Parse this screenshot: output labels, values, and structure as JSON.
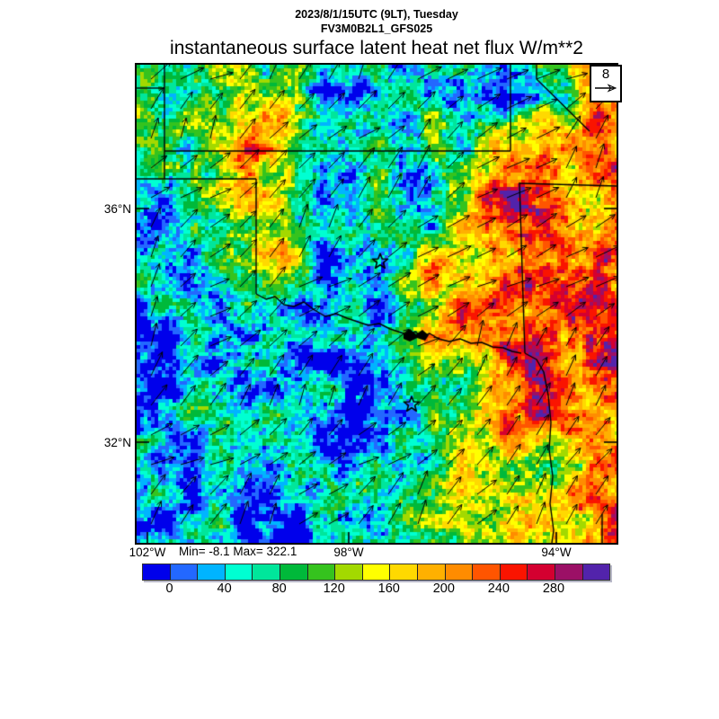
{
  "header": {
    "line1": "2023/8/1/15UTC (9LT), Tuesday",
    "line2": "FV3M0B2L1_GFS025",
    "title": "instantaneous surface latent heat net flux W/m**2"
  },
  "map": {
    "minmax_label": "Min= -8.1 Max= 322.1",
    "wind_ref_label": "8",
    "borders": [
      [
        [
          152,
          98
        ],
        [
          183,
          98
        ]
      ],
      [
        [
          183,
          72
        ],
        [
          183,
          199
        ]
      ],
      [
        [
          183,
          168
        ],
        [
          568,
          168
        ]
      ],
      [
        [
          568,
          72
        ],
        [
          568,
          168
        ]
      ],
      [
        [
          597,
          72
        ],
        [
          597,
          88
        ],
        [
          656,
          146
        ]
      ],
      [
        [
          152,
          199
        ],
        [
          285,
          199
        ]
      ],
      [
        [
          285,
          199
        ],
        [
          285,
          327
        ]
      ],
      [
        [
          285,
          327
        ],
        [
          296,
          333
        ],
        [
          306,
          330
        ],
        [
          316,
          339
        ],
        [
          327,
          341
        ],
        [
          338,
          336
        ],
        [
          350,
          345
        ],
        [
          362,
          352
        ],
        [
          374,
          349
        ],
        [
          386,
          354
        ],
        [
          398,
          358
        ],
        [
          410,
          362
        ],
        [
          422,
          360
        ],
        [
          434,
          366
        ],
        [
          446,
          370
        ],
        [
          455,
          373
        ],
        [
          462,
          369
        ],
        [
          470,
          375
        ],
        [
          478,
          371
        ],
        [
          488,
          377
        ],
        [
          500,
          380
        ],
        [
          512,
          377
        ],
        [
          524,
          382
        ],
        [
          536,
          381
        ],
        [
          548,
          386
        ],
        [
          560,
          387
        ],
        [
          570,
          391
        ],
        [
          580,
          393
        ]
      ],
      [
        [
          578,
          203
        ],
        [
          581,
          300
        ],
        [
          584,
          393
        ]
      ],
      [
        [
          578,
          204
        ],
        [
          686,
          207
        ]
      ],
      [
        [
          584,
          393
        ],
        [
          597,
          400
        ],
        [
          605,
          414
        ],
        [
          610,
          440
        ],
        [
          613,
          470
        ],
        [
          611,
          500
        ],
        [
          615,
          530
        ],
        [
          612,
          560
        ],
        [
          616,
          590
        ],
        [
          614,
          604
        ]
      ],
      [
        [
          670,
          572
        ],
        [
          670,
          604
        ]
      ]
    ],
    "lake_polygon": [
      [
        449,
        372
      ],
      [
        456,
        366
      ],
      [
        463,
        372
      ],
      [
        470,
        367
      ],
      [
        477,
        373
      ],
      [
        473,
        379
      ],
      [
        464,
        376
      ],
      [
        456,
        380
      ],
      [
        449,
        377
      ]
    ],
    "stars": [
      [
        423,
        291
      ],
      [
        458,
        450
      ]
    ]
  },
  "chart_data": {
    "type": "heatmap",
    "title": "instantaneous surface latent heat net flux W/m**2",
    "subtitle_datetime": "2023/8/1/15UTC (9LT), Tuesday",
    "subtitle_model": "FV3M0B2L1_GFS025",
    "units": "W/m**2",
    "stat_min": -8.1,
    "stat_max": 322.1,
    "wind_reference_value": 8,
    "y_axis": {
      "tick_labels": [
        "36°N",
        "32°N"
      ]
    },
    "x_axis": {
      "tick_labels": [
        "102°W",
        "98°W",
        "94°W"
      ]
    },
    "colorbar": {
      "tick_labels": [
        "0",
        "40",
        "80",
        "120",
        "160",
        "200",
        "240",
        "280"
      ],
      "bin_width": 20,
      "colors": [
        "#0000eb",
        "#2368ff",
        "#00b4ff",
        "#00ffd2",
        "#00e69b",
        "#00b93a",
        "#35c31e",
        "#a3d900",
        "#ffff00",
        "#ffd900",
        "#ffb000",
        "#ff8c00",
        "#ff5500",
        "#fa1400",
        "#d40030",
        "#9b1066",
        "#5223ab"
      ]
    },
    "field_grid": {
      "note": "approximate latent heat flux values W/m**2 sampled on a 14x13 grid over the plotted domain",
      "cols": 14,
      "rows": 13,
      "values": [
        [
          90,
          100,
          110,
          90,
          120,
          50,
          20,
          40,
          80,
          60,
          40,
          70,
          180,
          220
        ],
        [
          90,
          90,
          140,
          170,
          170,
          30,
          10,
          40,
          90,
          50,
          30,
          80,
          150,
          210
        ],
        [
          70,
          90,
          130,
          230,
          180,
          20,
          15,
          50,
          80,
          60,
          190,
          250,
          200,
          240
        ],
        [
          50,
          40,
          90,
          200,
          150,
          20,
          40,
          60,
          50,
          150,
          260,
          240,
          200,
          250
        ],
        [
          30,
          20,
          60,
          150,
          140,
          50,
          25,
          70,
          60,
          170,
          240,
          260,
          210,
          230
        ],
        [
          25,
          15,
          50,
          120,
          140,
          55,
          20,
          50,
          160,
          200,
          220,
          240,
          200,
          230
        ],
        [
          40,
          20,
          35,
          55,
          80,
          40,
          15,
          55,
          150,
          200,
          250,
          220,
          240,
          210
        ],
        [
          45,
          20,
          15,
          35,
          25,
          15,
          35,
          80,
          170,
          190,
          255,
          235,
          210,
          245
        ],
        [
          25,
          15,
          20,
          35,
          10,
          10,
          20,
          60,
          140,
          80,
          200,
          250,
          180,
          220
        ],
        [
          20,
          10,
          35,
          15,
          10,
          15,
          10,
          50,
          80,
          140,
          230,
          255,
          200,
          170
        ],
        [
          15,
          10,
          45,
          20,
          10,
          10,
          30,
          55,
          90,
          150,
          120,
          90,
          150,
          230
        ],
        [
          10,
          30,
          50,
          15,
          10,
          15,
          45,
          60,
          130,
          150,
          110,
          130,
          200,
          245
        ],
        [
          10,
          15,
          40,
          20,
          10,
          30,
          55,
          90,
          60,
          160,
          150,
          170,
          210,
          235
        ]
      ]
    }
  }
}
